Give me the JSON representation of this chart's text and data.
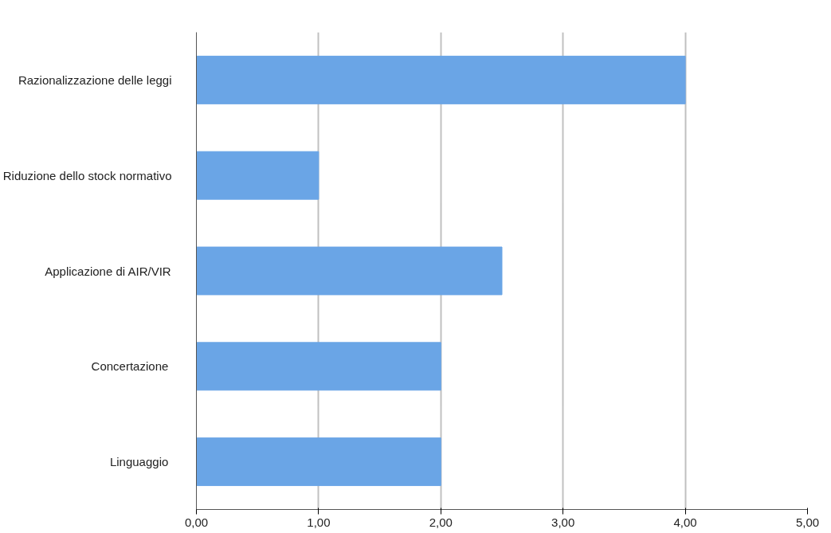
{
  "chart_data": {
    "type": "bar",
    "orientation": "horizontal",
    "categories": [
      "Razionalizzazione delle leggi",
      "Riduzione dello stock normativo",
      "Applicazione di AIR/VIR",
      "Concertazione ",
      "Linguaggio "
    ],
    "values": [
      4.0,
      1.0,
      2.5,
      2.0,
      2.0
    ],
    "color": "#6aa5e6",
    "xlim": [
      0,
      5
    ],
    "xticks": [
      {
        "value": 0,
        "label": "0,00"
      },
      {
        "value": 1,
        "label": "1,00"
      },
      {
        "value": 2,
        "label": "2,00"
      },
      {
        "value": 3,
        "label": "3,00"
      },
      {
        "value": 4,
        "label": "4,00"
      },
      {
        "value": 5,
        "label": "5,00"
      }
    ],
    "grid": "x"
  }
}
